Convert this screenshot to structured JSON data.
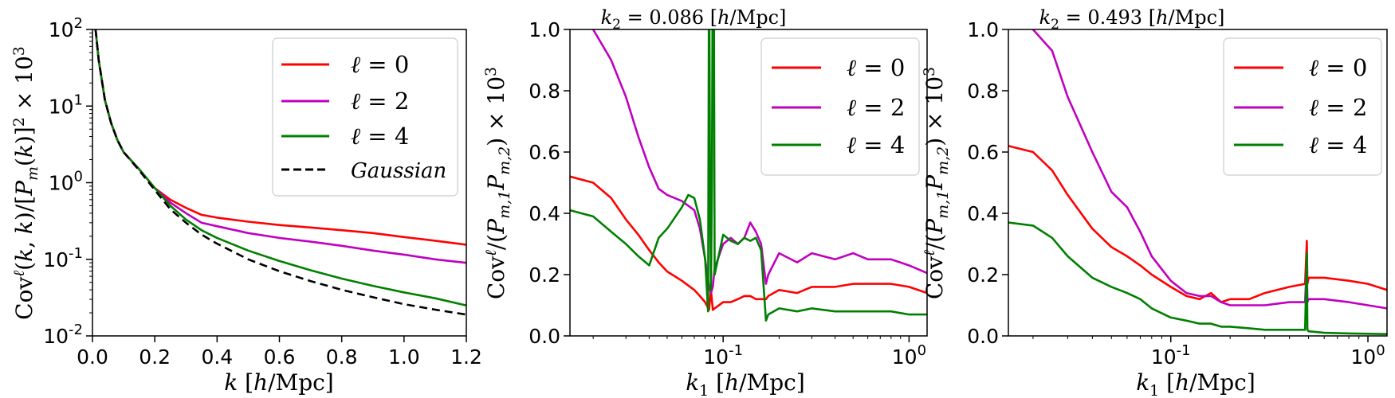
{
  "chart_data": [
    {
      "type": "line",
      "title": "",
      "xlabel": "k [h/Mpc]",
      "ylabel": "Cov^ℓ(k,k)/[P_m(k)]^2 × 10^3",
      "xscale": "linear",
      "yscale": "log",
      "xlim": [
        0,
        1.2
      ],
      "ylim": [
        0.01,
        100
      ],
      "xticks": [
        0,
        0.2,
        0.4,
        0.6,
        0.8,
        1.0,
        1.2
      ],
      "xtick_labels": [
        "0.0",
        "0.2",
        "0.4",
        "0.6",
        "0.8",
        "1.0",
        "1.2"
      ],
      "ytick_labels": [
        "10^-2",
        "10^-1",
        "10^0",
        "10^1",
        "10^2"
      ],
      "legend_position": "top-right",
      "series": [
        {
          "name": "ℓ = 0",
          "color": "#ff0000",
          "style": "solid",
          "x": [
            0.01,
            0.02,
            0.04,
            0.06,
            0.08,
            0.1,
            0.15,
            0.2,
            0.25,
            0.3,
            0.35,
            0.4,
            0.5,
            0.6,
            0.7,
            0.8,
            0.9,
            1.0,
            1.1,
            1.2
          ],
          "y": [
            100,
            40,
            12,
            6,
            3.6,
            2.5,
            1.5,
            0.85,
            0.6,
            0.47,
            0.38,
            0.35,
            0.31,
            0.28,
            0.26,
            0.24,
            0.22,
            0.195,
            0.175,
            0.155
          ]
        },
        {
          "name": "ℓ = 2",
          "color": "#c000c0",
          "style": "solid",
          "x": [
            0.01,
            0.02,
            0.04,
            0.06,
            0.08,
            0.1,
            0.15,
            0.2,
            0.25,
            0.3,
            0.35,
            0.4,
            0.5,
            0.6,
            0.7,
            0.8,
            0.9,
            1.0,
            1.1,
            1.2
          ],
          "y": [
            100,
            40,
            12,
            6,
            3.6,
            2.5,
            1.5,
            0.85,
            0.55,
            0.4,
            0.3,
            0.27,
            0.22,
            0.19,
            0.17,
            0.15,
            0.13,
            0.115,
            0.1,
            0.09
          ]
        },
        {
          "name": "ℓ = 4",
          "color": "#008000",
          "style": "solid",
          "x": [
            0.01,
            0.02,
            0.04,
            0.06,
            0.08,
            0.1,
            0.15,
            0.2,
            0.25,
            0.3,
            0.35,
            0.4,
            0.5,
            0.6,
            0.7,
            0.8,
            0.9,
            1.0,
            1.1,
            1.2
          ],
          "y": [
            100,
            40,
            12,
            6,
            3.6,
            2.5,
            1.5,
            0.85,
            0.5,
            0.33,
            0.24,
            0.19,
            0.13,
            0.095,
            0.072,
            0.056,
            0.045,
            0.037,
            0.031,
            0.025
          ]
        },
        {
          "name": "Gaussian",
          "color": "#000000",
          "style": "dashed",
          "x": [
            0.01,
            0.02,
            0.04,
            0.06,
            0.08,
            0.1,
            0.15,
            0.2,
            0.25,
            0.3,
            0.35,
            0.4,
            0.5,
            0.6,
            0.7,
            0.8,
            0.9,
            1.0,
            1.1,
            1.2
          ],
          "y": [
            100,
            40,
            12,
            6,
            3.6,
            2.5,
            1.45,
            0.8,
            0.45,
            0.3,
            0.21,
            0.16,
            0.1,
            0.07,
            0.052,
            0.04,
            0.032,
            0.026,
            0.022,
            0.019
          ]
        }
      ]
    },
    {
      "type": "line",
      "title": "k_2 = 0.086 [h/Mpc]",
      "xlabel": "k_1 [h/Mpc]",
      "ylabel": "Cov^ℓ/(P_m,1 P_m,2) × 10^3",
      "xscale": "log",
      "yscale": "linear",
      "xlim": [
        0.015,
        1.25
      ],
      "ylim": [
        0,
        1.0
      ],
      "xtick_labels": [
        "10^-1",
        "10^0"
      ],
      "ytick_labels": [
        "0.0",
        "0.2",
        "0.4",
        "0.6",
        "0.8",
        "1.0"
      ],
      "legend_position": "top-right",
      "series": [
        {
          "name": "ℓ = 0",
          "color": "#ff0000",
          "x": [
            0.015,
            0.02,
            0.025,
            0.03,
            0.035,
            0.04,
            0.045,
            0.05,
            0.06,
            0.07,
            0.075,
            0.08,
            0.084,
            0.086,
            0.088,
            0.09,
            0.1,
            0.11,
            0.12,
            0.13,
            0.14,
            0.15,
            0.16,
            0.17,
            0.175,
            0.2,
            0.25,
            0.3,
            0.4,
            0.5,
            0.6,
            0.7,
            0.8,
            1.0,
            1.25
          ],
          "y": [
            0.52,
            0.5,
            0.45,
            0.38,
            0.33,
            0.28,
            0.24,
            0.21,
            0.18,
            0.15,
            0.13,
            0.11,
            0.085,
            0.15,
            0.085,
            0.09,
            0.11,
            0.11,
            0.12,
            0.13,
            0.13,
            0.12,
            0.12,
            0.12,
            0.13,
            0.15,
            0.14,
            0.16,
            0.16,
            0.17,
            0.17,
            0.17,
            0.17,
            0.16,
            0.14
          ]
        },
        {
          "name": "ℓ = 2",
          "color": "#c000c0",
          "x": [
            0.015,
            0.02,
            0.025,
            0.03,
            0.035,
            0.04,
            0.045,
            0.05,
            0.06,
            0.07,
            0.075,
            0.08,
            0.084,
            0.086,
            0.088,
            0.09,
            0.1,
            0.11,
            0.12,
            0.13,
            0.14,
            0.15,
            0.16,
            0.17,
            0.175,
            0.2,
            0.25,
            0.3,
            0.4,
            0.5,
            0.6,
            0.7,
            0.8,
            1.0,
            1.25
          ],
          "y": [
            1.3,
            1.0,
            0.9,
            0.78,
            0.65,
            0.55,
            0.48,
            0.46,
            0.44,
            0.41,
            0.35,
            0.25,
            0.16,
            0.14,
            0.16,
            0.22,
            0.3,
            0.32,
            0.3,
            0.32,
            0.37,
            0.34,
            0.3,
            0.17,
            0.2,
            0.27,
            0.24,
            0.27,
            0.25,
            0.27,
            0.25,
            0.25,
            0.25,
            0.23,
            0.205
          ]
        },
        {
          "name": "ℓ = 4",
          "color": "#008000",
          "x": [
            0.015,
            0.02,
            0.025,
            0.03,
            0.035,
            0.04,
            0.045,
            0.05,
            0.06,
            0.065,
            0.07,
            0.075,
            0.08,
            0.083,
            0.084,
            0.085,
            0.086,
            0.087,
            0.088,
            0.089,
            0.09,
            0.1,
            0.11,
            0.12,
            0.13,
            0.14,
            0.15,
            0.16,
            0.17,
            0.175,
            0.2,
            0.25,
            0.3,
            0.4,
            0.5,
            0.6,
            0.8,
            1.0,
            1.25
          ],
          "y": [
            0.41,
            0.39,
            0.34,
            0.3,
            0.26,
            0.23,
            0.32,
            0.35,
            0.42,
            0.46,
            0.45,
            0.38,
            0.25,
            0.08,
            1.3,
            0.5,
            0.15,
            0.5,
            1.3,
            1.3,
            0.2,
            0.33,
            0.31,
            0.3,
            0.32,
            0.31,
            0.32,
            0.28,
            0.05,
            0.07,
            0.09,
            0.08,
            0.09,
            0.08,
            0.08,
            0.08,
            0.08,
            0.07,
            0.07
          ]
        }
      ]
    },
    {
      "type": "line",
      "title": "k_2 = 0.493 [h/Mpc]",
      "xlabel": "k_1 [h/Mpc]",
      "ylabel": "Cov^ℓ/(P_m,1 P_m,2) × 10^3",
      "xscale": "log",
      "yscale": "linear",
      "xlim": [
        0.015,
        1.25
      ],
      "ylim": [
        0,
        1.0
      ],
      "xtick_labels": [
        "10^-1",
        "10^0"
      ],
      "ytick_labels": [
        "0.0",
        "0.2",
        "0.4",
        "0.6",
        "0.8",
        "1.0"
      ],
      "legend_position": "top-right",
      "series": [
        {
          "name": "ℓ = 0",
          "color": "#ff0000",
          "x": [
            0.015,
            0.02,
            0.025,
            0.03,
            0.04,
            0.05,
            0.06,
            0.07,
            0.08,
            0.1,
            0.12,
            0.14,
            0.16,
            0.18,
            0.2,
            0.25,
            0.3,
            0.4,
            0.48,
            0.49,
            0.493,
            0.5,
            0.6,
            0.8,
            1.0,
            1.25
          ],
          "y": [
            0.62,
            0.6,
            0.54,
            0.46,
            0.35,
            0.29,
            0.26,
            0.23,
            0.2,
            0.16,
            0.13,
            0.12,
            0.14,
            0.11,
            0.12,
            0.12,
            0.14,
            0.16,
            0.17,
            0.31,
            0.17,
            0.19,
            0.19,
            0.18,
            0.17,
            0.15
          ]
        },
        {
          "name": "ℓ = 2",
          "color": "#c000c0",
          "x": [
            0.015,
            0.02,
            0.025,
            0.03,
            0.04,
            0.05,
            0.06,
            0.07,
            0.08,
            0.1,
            0.12,
            0.14,
            0.16,
            0.18,
            0.2,
            0.25,
            0.3,
            0.4,
            0.48,
            0.49,
            0.493,
            0.5,
            0.6,
            0.8,
            1.0,
            1.25
          ],
          "y": [
            1.2,
            1.0,
            0.93,
            0.78,
            0.6,
            0.47,
            0.42,
            0.34,
            0.26,
            0.18,
            0.14,
            0.13,
            0.13,
            0.11,
            0.1,
            0.1,
            0.1,
            0.11,
            0.11,
            0.24,
            0.11,
            0.12,
            0.12,
            0.11,
            0.1,
            0.09
          ]
        },
        {
          "name": "ℓ = 4",
          "color": "#008000",
          "x": [
            0.015,
            0.02,
            0.025,
            0.03,
            0.04,
            0.05,
            0.06,
            0.07,
            0.08,
            0.1,
            0.12,
            0.14,
            0.16,
            0.18,
            0.2,
            0.25,
            0.3,
            0.4,
            0.48,
            0.49,
            0.493,
            0.5,
            0.6,
            0.8,
            1.0,
            1.25
          ],
          "y": [
            0.37,
            0.36,
            0.32,
            0.26,
            0.19,
            0.16,
            0.14,
            0.12,
            0.09,
            0.06,
            0.05,
            0.04,
            0.04,
            0.03,
            0.03,
            0.025,
            0.02,
            0.02,
            0.02,
            0.27,
            0.02,
            0.015,
            0.01,
            0.008,
            0.007,
            0.006
          ]
        }
      ]
    }
  ]
}
